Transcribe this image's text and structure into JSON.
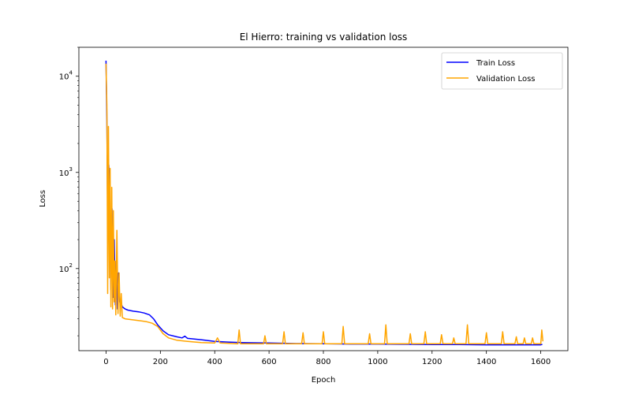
{
  "chart_data": {
    "type": "line",
    "title": "El Hierro: training vs validation loss",
    "xlabel": "Epoch",
    "ylabel": "Loss",
    "yscale": "log",
    "xlim": [
      -100,
      1700
    ],
    "ylim": [
      14,
      20000
    ],
    "xticks": [
      0,
      200,
      400,
      600,
      800,
      1000,
      1200,
      1400,
      1600
    ],
    "yticks_major": [
      {
        "value": 100,
        "base": "10",
        "exp": "2"
      },
      {
        "value": 1000,
        "base": "10",
        "exp": "3"
      },
      {
        "value": 10000,
        "base": "10",
        "exp": "4"
      }
    ],
    "legend": {
      "placement": "top-right"
    },
    "grid": false,
    "series": [
      {
        "name": "Train Loss",
        "color": "#0000ff",
        "points": [
          [
            0,
            14500
          ],
          [
            3,
            3500
          ],
          [
            6,
            320
          ],
          [
            10,
            1200
          ],
          [
            14,
            700
          ],
          [
            18,
            60
          ],
          [
            22,
            420
          ],
          [
            26,
            50
          ],
          [
            30,
            200
          ],
          [
            34,
            42
          ],
          [
            38,
            120
          ],
          [
            42,
            38
          ],
          [
            46,
            90
          ],
          [
            50,
            45
          ],
          [
            55,
            44
          ],
          [
            60,
            40
          ],
          [
            70,
            38
          ],
          [
            80,
            37
          ],
          [
            100,
            36
          ],
          [
            120,
            35.5
          ],
          [
            140,
            34.5
          ],
          [
            160,
            33
          ],
          [
            175,
            30
          ],
          [
            190,
            26
          ],
          [
            210,
            22.5
          ],
          [
            230,
            20.5
          ],
          [
            260,
            19.5
          ],
          [
            280,
            19
          ],
          [
            290,
            19.8
          ],
          [
            300,
            18.8
          ],
          [
            350,
            18.2
          ],
          [
            400,
            17.5
          ],
          [
            450,
            17.2
          ],
          [
            500,
            17
          ],
          [
            600,
            16.8
          ],
          [
            700,
            16.6
          ],
          [
            800,
            16.5
          ],
          [
            900,
            16.4
          ],
          [
            1000,
            16.4
          ],
          [
            1100,
            16.3
          ],
          [
            1200,
            16.2
          ],
          [
            1300,
            16.2
          ],
          [
            1400,
            16.1
          ],
          [
            1500,
            16.1
          ],
          [
            1600,
            16.1
          ],
          [
            1606,
            16.3
          ]
        ]
      },
      {
        "name": "Validation Loss",
        "color": "#ffa500",
        "points": [
          [
            0,
            13500
          ],
          [
            3,
            5000
          ],
          [
            6,
            55
          ],
          [
            9,
            3000
          ],
          [
            12,
            80
          ],
          [
            15,
            1100
          ],
          [
            18,
            40
          ],
          [
            21,
            700
          ],
          [
            24,
            38
          ],
          [
            27,
            400
          ],
          [
            30,
            45
          ],
          [
            33,
            120
          ],
          [
            36,
            33
          ],
          [
            40,
            250
          ],
          [
            44,
            34
          ],
          [
            48,
            90
          ],
          [
            52,
            32
          ],
          [
            56,
            55
          ],
          [
            60,
            31
          ],
          [
            70,
            30
          ],
          [
            90,
            29.5
          ],
          [
            110,
            29
          ],
          [
            130,
            28.5
          ],
          [
            150,
            28
          ],
          [
            170,
            27
          ],
          [
            190,
            25
          ],
          [
            210,
            21
          ],
          [
            230,
            19
          ],
          [
            260,
            18
          ],
          [
            300,
            17.5
          ],
          [
            350,
            17
          ],
          [
            400,
            16.8
          ],
          [
            410,
            19
          ],
          [
            420,
            16.8
          ],
          [
            485,
            16.5
          ],
          [
            490,
            23
          ],
          [
            495,
            16.5
          ],
          [
            580,
            16.5
          ],
          [
            585,
            20
          ],
          [
            590,
            16.5
          ],
          [
            650,
            16.5
          ],
          [
            655,
            22
          ],
          [
            660,
            16.5
          ],
          [
            720,
            16.5
          ],
          [
            725,
            21.5
          ],
          [
            730,
            16.5
          ],
          [
            795,
            16.5
          ],
          [
            800,
            22
          ],
          [
            805,
            16.5
          ],
          [
            868,
            16.5
          ],
          [
            873,
            25
          ],
          [
            878,
            16.5
          ],
          [
            965,
            16.5
          ],
          [
            970,
            21
          ],
          [
            975,
            16.5
          ],
          [
            1025,
            16.5
          ],
          [
            1030,
            26
          ],
          [
            1035,
            16.5
          ],
          [
            1115,
            16.5
          ],
          [
            1120,
            21
          ],
          [
            1125,
            16.5
          ],
          [
            1170,
            16.5
          ],
          [
            1175,
            22
          ],
          [
            1180,
            16.5
          ],
          [
            1230,
            16.5
          ],
          [
            1235,
            20.5
          ],
          [
            1240,
            16.5
          ],
          [
            1275,
            16.5
          ],
          [
            1280,
            19
          ],
          [
            1285,
            16.5
          ],
          [
            1325,
            16.5
          ],
          [
            1330,
            26
          ],
          [
            1335,
            16.5
          ],
          [
            1395,
            16.5
          ],
          [
            1400,
            21.5
          ],
          [
            1405,
            16.5
          ],
          [
            1455,
            16.5
          ],
          [
            1460,
            22
          ],
          [
            1465,
            16.5
          ],
          [
            1505,
            16.5
          ],
          [
            1510,
            19.5
          ],
          [
            1515,
            16.5
          ],
          [
            1535,
            16.5
          ],
          [
            1540,
            19
          ],
          [
            1545,
            16.5
          ],
          [
            1565,
            16.5
          ],
          [
            1570,
            19
          ],
          [
            1575,
            16.5
          ],
          [
            1600,
            16.5
          ],
          [
            1604,
            23
          ],
          [
            1608,
            17.5
          ]
        ]
      }
    ]
  }
}
